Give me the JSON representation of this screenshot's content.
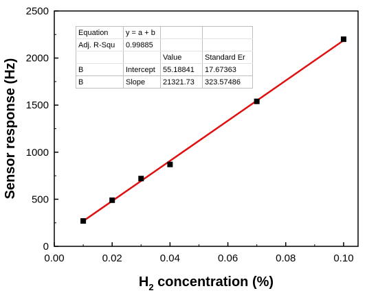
{
  "chart_data": {
    "type": "scatter",
    "xlabel_main": "H",
    "xlabel_sub": "2",
    "xlabel_rest": " concentration (%)",
    "ylabel": "Sensor response (Hz)",
    "xlim": [
      0.0,
      0.105
    ],
    "ylim": [
      0,
      2500
    ],
    "x_ticks": [
      "0.00",
      "0.02",
      "0.04",
      "0.06",
      "0.08",
      "0.10"
    ],
    "y_ticks": [
      "0",
      "500",
      "1000",
      "1500",
      "2000",
      "2500"
    ],
    "grid": false,
    "points": [
      {
        "x": 0.01,
        "y": 270
      },
      {
        "x": 0.02,
        "y": 490
      },
      {
        "x": 0.03,
        "y": 720
      },
      {
        "x": 0.04,
        "y": 870
      },
      {
        "x": 0.07,
        "y": 1540
      },
      {
        "x": 0.1,
        "y": 2200
      }
    ],
    "fit": {
      "intercept": 55.18841,
      "slope": 21321.73,
      "x_range": [
        0.01,
        0.1
      ],
      "line_color": "#e01010"
    },
    "marker_color": "#000000",
    "fit_table": [
      [
        "Equation",
        "y = a + b",
        "",
        ""
      ],
      [
        "Adj. R-Squ",
        "0.99885",
        "",
        ""
      ],
      [
        "",
        "",
        "Value",
        "Standard Er"
      ],
      [
        "B",
        "Intercept",
        "55.18841",
        "17.67363"
      ],
      [
        "B",
        "Slope",
        "21321.73",
        "323.57486"
      ]
    ]
  }
}
